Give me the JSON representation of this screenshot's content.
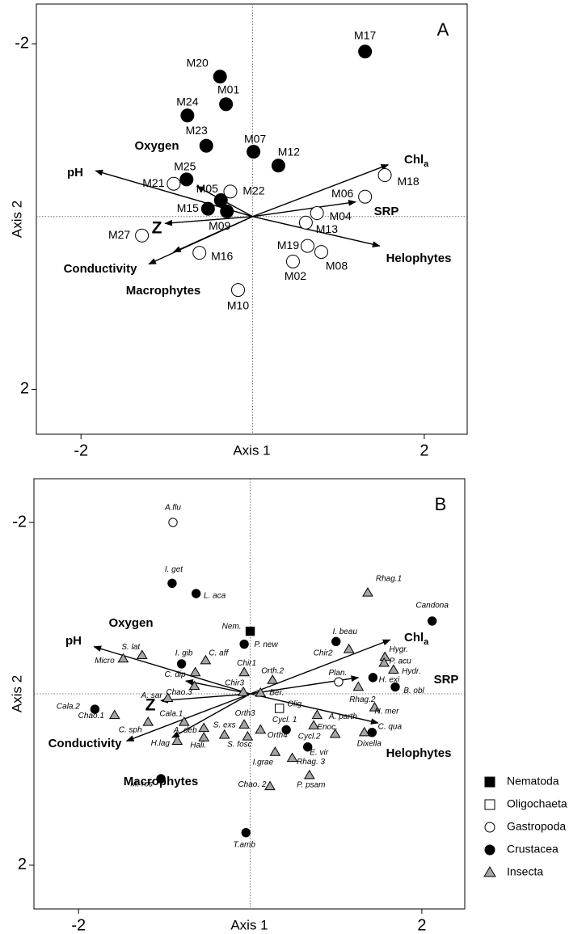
{
  "chart_data": [
    {
      "type": "scatter",
      "panel_label": "A",
      "x_label": "Axis 1",
      "y_label": "Axis 2",
      "xlim": [
        -2.52,
        2.5
      ],
      "ylim": [
        -2.46,
        2.52
      ],
      "y_inverted": true,
      "xticks": [
        -2,
        2
      ],
      "yticks": [
        -2,
        2
      ],
      "series": [
        {
          "marker": "circle",
          "color": "#000000",
          "fill": "#000000",
          "labels": [
            "M17",
            "M20",
            "M01",
            "M24",
            "M23",
            "M07",
            "M12",
            "M25",
            "M05",
            "M15",
            "M09"
          ],
          "x": [
            1.31,
            -0.38,
            -0.31,
            -0.76,
            -0.54,
            0.01,
            0.3,
            -0.77,
            -0.37,
            -0.52,
            -0.3
          ],
          "y": [
            -1.91,
            -1.62,
            -1.3,
            -1.17,
            -0.82,
            -0.75,
            -0.59,
            -0.43,
            -0.19,
            -0.09,
            -0.06
          ]
        },
        {
          "marker": "circle",
          "color": "#000000",
          "fill": "#ffffff",
          "labels": [
            "M18",
            "M06",
            "M21",
            "M22",
            "M04",
            "M13",
            "M27",
            "M16",
            "M19",
            "M08",
            "M02",
            "M10"
          ],
          "x": [
            1.54,
            1.31,
            -0.92,
            -0.26,
            0.75,
            0.62,
            -1.29,
            -0.62,
            0.64,
            0.8,
            0.47,
            -0.17
          ],
          "y": [
            -0.48,
            -0.23,
            -0.38,
            -0.29,
            -0.04,
            0.07,
            0.22,
            0.42,
            0.34,
            0.41,
            0.52,
            0.85
          ]
        }
      ],
      "vectors": [
        {
          "label": "Chl",
          "sub": "a",
          "x": 1.58,
          "y": -0.6
        },
        {
          "label": "SRP",
          "x": 1.2,
          "y": -0.17
        },
        {
          "label": "Helophytes",
          "x": 1.48,
          "y": 0.34
        },
        {
          "label": "pH",
          "x": -1.83,
          "y": -0.53
        },
        {
          "label": "Oxygen",
          "x": -0.65,
          "y": -0.35
        },
        {
          "label": "Z",
          "x": -1.02,
          "y": 0.08
        },
        {
          "label": "Conductivity",
          "x": -1.21,
          "y": 0.55
        },
        {
          "label": "Macrophytes",
          "x": -0.92,
          "y": 0.41
        }
      ]
    },
    {
      "type": "scatter",
      "panel_label": "B",
      "x_label": "Axis 1",
      "y_label": "Axis 2",
      "xlim": [
        -2.52,
        2.5
      ],
      "ylim": [
        -2.51,
        2.51
      ],
      "y_inverted": true,
      "xticks": [
        -2,
        2
      ],
      "yticks": [
        -2,
        2
      ],
      "series": [
        {
          "name": "Nematoda",
          "marker": "square",
          "color": "#000000",
          "fill": "#000000",
          "labels": [
            "Nem."
          ],
          "x": [
            0.0
          ],
          "y": [
            -0.73
          ]
        },
        {
          "name": "Oligochaeta",
          "marker": "square",
          "color": "#000000",
          "fill": "#ffffff",
          "labels": [
            "Olig."
          ],
          "x": [
            0.34
          ],
          "y": [
            0.17
          ]
        },
        {
          "name": "Gastropoda",
          "marker": "circle",
          "color": "#000000",
          "fill": "#ffffff",
          "labels": [
            "A.flu",
            "Plan."
          ],
          "x": [
            -0.9,
            1.03
          ],
          "y": [
            -2.0,
            -0.14
          ]
        },
        {
          "name": "Crustacea",
          "marker": "circle",
          "color": "#000000",
          "fill": "#000000",
          "labels": [
            "I. get",
            "L. aca",
            "P. new",
            "Candona",
            "I. beau",
            "H. exi",
            "B. obl",
            "C. qua",
            "Cala.2",
            "I. gib",
            "M. ros",
            "T.amb",
            "Cycl. 1",
            "E. vir"
          ],
          "x": [
            -0.91,
            -0.63,
            -0.07,
            2.12,
            1.0,
            1.43,
            1.69,
            1.42,
            -1.81,
            -0.8,
            -1.04,
            -0.05,
            0.42,
            0.67
          ],
          "y": [
            -1.29,
            -1.17,
            -0.58,
            -0.85,
            -0.61,
            -0.19,
            -0.08,
            0.45,
            0.18,
            -0.35,
            0.99,
            1.62,
            0.42,
            0.62
          ]
        },
        {
          "name": "Insecta",
          "marker": "triangle",
          "color": "#000000",
          "fill": "#a6a6a6",
          "labels": [
            "Rhag.1",
            "Chir2",
            "Hygr.",
            "P. acu",
            "Hydr.",
            "Rhag.2",
            "N. mer",
            "Dixella",
            "A. parth",
            "Enoc.",
            "Cycl.2",
            "Rhag. 3",
            "I.grae",
            "Chao. 2",
            "P. psam",
            "Orth.2",
            "Ber.",
            "Chir1",
            "Chir3",
            "S. lat",
            "Micro",
            "C. aff",
            "C. dip",
            "Chao.3",
            "A. sar",
            "Chao.1",
            "C. sph",
            "Cala.1",
            "A. deb",
            "Hali.",
            "H.lag",
            "S. exs",
            "Orth3",
            "S. fosc",
            "Orth4"
          ],
          "x": [
            1.37,
            1.15,
            1.57,
            1.56,
            1.67,
            1.26,
            1.45,
            1.33,
            0.78,
            0.74,
            0.99,
            0.49,
            0.29,
            0.23,
            0.69,
            0.26,
            0.12,
            -0.07,
            -0.08,
            -1.26,
            -1.48,
            -0.52,
            -0.64,
            -0.65,
            -0.96,
            -1.58,
            -1.19,
            -0.77,
            -0.54,
            -0.54,
            -0.85,
            -0.3,
            -0.07,
            -0.03,
            0.12
          ],
          "y": [
            -1.18,
            -0.52,
            -0.43,
            -0.36,
            -0.28,
            -0.08,
            0.16,
            0.45,
            0.25,
            0.37,
            0.47,
            0.75,
            0.68,
            1.08,
            0.95,
            -0.16,
            -0.01,
            -0.25,
            -0.02,
            -0.45,
            -0.41,
            -0.39,
            -0.25,
            -0.09,
            0.05,
            0.25,
            0.33,
            0.33,
            0.4,
            0.51,
            0.55,
            0.48,
            0.36,
            0.5,
            0.42
          ]
        }
      ],
      "vectors": [
        {
          "label": "Chl",
          "sub": "a",
          "x": 1.63,
          "y": -0.63
        },
        {
          "label": "SRP",
          "x": 1.26,
          "y": -0.19
        },
        {
          "label": "Helophytes",
          "x": 1.49,
          "y": 0.34
        },
        {
          "label": "pH",
          "x": -1.82,
          "y": -0.55
        },
        {
          "label": "Oxygen",
          "x": -0.75,
          "y": -0.15
        },
        {
          "label": "Z",
          "x": -1.04,
          "y": 0.08
        },
        {
          "label": "Conductivity",
          "x": -1.44,
          "y": 0.55
        },
        {
          "label": "Macrophytes",
          "x": -0.91,
          "y": 0.51
        }
      ]
    }
  ]
}
